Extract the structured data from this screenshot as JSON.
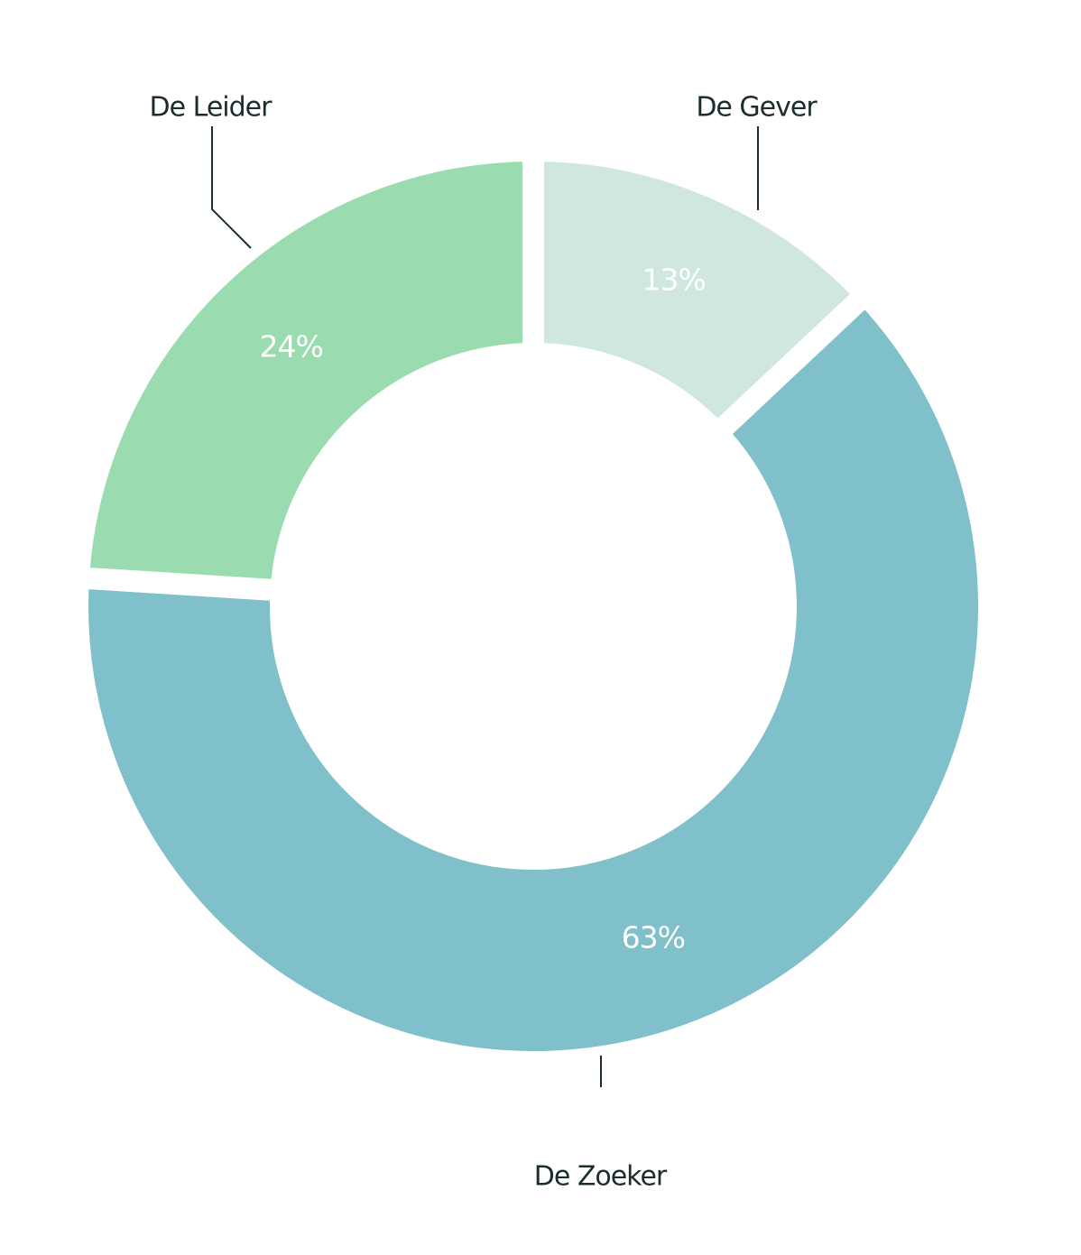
{
  "chart_data": {
    "type": "donut",
    "categories": [
      "De Gever",
      "De Zoeker",
      "De Leider"
    ],
    "values": [
      13,
      63,
      24
    ],
    "value_labels": [
      "13%",
      "63%",
      "24%"
    ],
    "colors": [
      "#d0e6e0",
      "#7fc0cb",
      "#9adcb0"
    ]
  }
}
